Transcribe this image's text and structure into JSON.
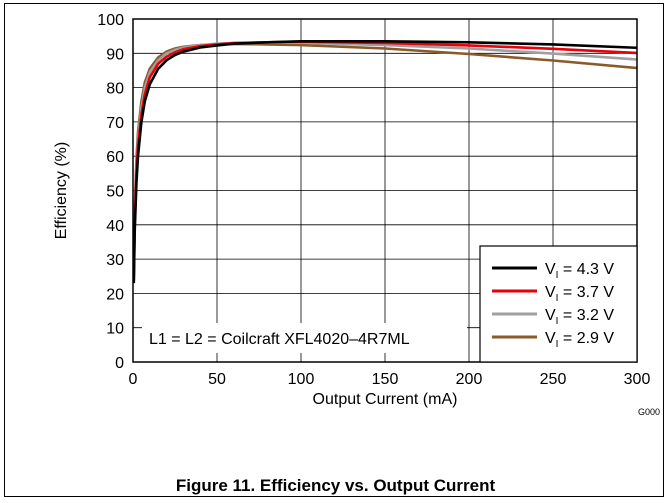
{
  "figure_caption": "Figure 11. Efficiency vs. Output Current",
  "figure_id": "G000",
  "annotation": "L1 = L2 = Coilcraft XFL4020–4R7ML",
  "chart_data": {
    "type": "line",
    "title": "",
    "xlabel": "Output Current (mA)",
    "ylabel": "Efficiency (%)",
    "xlim": [
      0,
      300
    ],
    "ylim": [
      0,
      100
    ],
    "xticks": [
      0,
      50,
      100,
      150,
      200,
      250,
      300
    ],
    "yticks": [
      0,
      10,
      20,
      30,
      40,
      50,
      60,
      70,
      80,
      90,
      100
    ],
    "grid": true,
    "legend_position": "bottom-right",
    "series": [
      {
        "name_main": "V",
        "name_sub": "I",
        "name_rest": " = 4.3 V",
        "color": "#000000",
        "x": [
          0.5,
          1,
          2,
          3,
          5,
          7,
          10,
          15,
          20,
          25,
          30,
          40,
          50,
          60,
          80,
          100,
          150,
          200,
          250,
          300
        ],
        "y": [
          23,
          38,
          52,
          60,
          70,
          76,
          81,
          85.5,
          88,
          89.5,
          90.5,
          91.7,
          92.3,
          92.8,
          93.2,
          93.5,
          93.5,
          93.2,
          92.6,
          91.6
        ]
      },
      {
        "name_main": "V",
        "name_sub": "I",
        "name_rest": " = 3.7 V",
        "color": "#e8000b",
        "x": [
          0.5,
          1,
          2,
          3,
          5,
          7,
          10,
          15,
          20,
          25,
          30,
          40,
          50,
          60,
          80,
          100,
          150,
          200,
          250,
          300
        ],
        "y": [
          24,
          40,
          55,
          63,
          72,
          78,
          83,
          87,
          89,
          90.3,
          91.2,
          92.1,
          92.6,
          93,
          93.2,
          93.4,
          93,
          92.3,
          91.3,
          90.1
        ]
      },
      {
        "name_main": "V",
        "name_sub": "I",
        "name_rest": " = 3.2 V",
        "color": "#a0a0a0",
        "x": [
          0.5,
          1,
          2,
          3,
          5,
          7,
          10,
          15,
          20,
          25,
          30,
          40,
          50,
          60,
          80,
          100,
          150,
          200,
          250,
          300
        ],
        "y": [
          25,
          42,
          57,
          65,
          74,
          80,
          84.5,
          88,
          90,
          91,
          91.7,
          92.4,
          92.8,
          93,
          93.1,
          93.1,
          92.4,
          91.4,
          89.9,
          88.2
        ]
      },
      {
        "name_main": "V",
        "name_sub": "I",
        "name_rest": " = 2.9 V",
        "color": "#8b5a2b",
        "x": [
          0.5,
          1,
          2,
          3,
          5,
          7,
          10,
          15,
          20,
          25,
          30,
          40,
          50,
          60,
          80,
          100,
          150,
          200,
          250,
          300
        ],
        "y": [
          26,
          44,
          59,
          67,
          76,
          81.5,
          85.5,
          88.8,
          90.5,
          91.4,
          91.9,
          92.4,
          92.6,
          92.7,
          92.6,
          92.4,
          91.4,
          89.8,
          87.9,
          85.7
        ]
      }
    ]
  }
}
